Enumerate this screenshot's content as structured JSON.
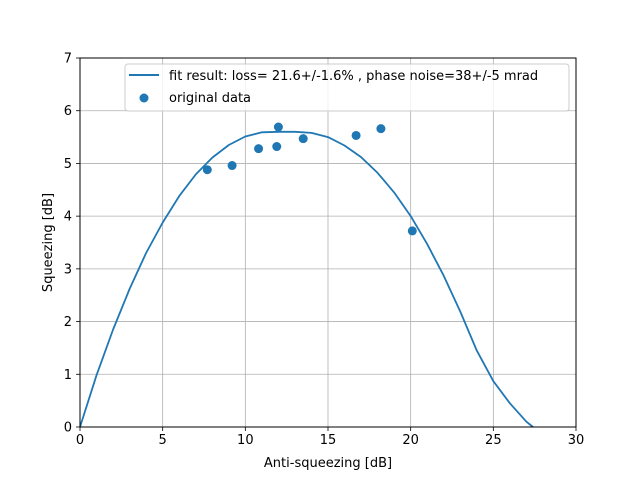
{
  "chart_data": {
    "type": "scatter",
    "title": "",
    "xlabel": "Anti-squeezing [dB]",
    "ylabel": "Squeezing [dB]",
    "xlim": [
      0,
      30
    ],
    "ylim": [
      0,
      7
    ],
    "x_ticks": [
      0,
      5,
      10,
      15,
      20,
      25,
      30
    ],
    "y_ticks": [
      0,
      1,
      2,
      3,
      4,
      5,
      6,
      7
    ],
    "grid": true,
    "legend_position": "top-right",
    "series": [
      {
        "name": "fit result: loss= 21.6+/-1.6% , phase noise=38+/-5 mrad",
        "kind": "line",
        "color": "#1f77b4",
        "points": [
          [
            0,
            0
          ],
          [
            1,
            0.98
          ],
          [
            2,
            1.85
          ],
          [
            3,
            2.62
          ],
          [
            4,
            3.3
          ],
          [
            5,
            3.88
          ],
          [
            6,
            4.38
          ],
          [
            7,
            4.79
          ],
          [
            8,
            5.11
          ],
          [
            9,
            5.35
          ],
          [
            10,
            5.51
          ],
          [
            11,
            5.59
          ],
          [
            12,
            5.6
          ],
          [
            13,
            5.6
          ],
          [
            14,
            5.58
          ],
          [
            15,
            5.5
          ],
          [
            16,
            5.34
          ],
          [
            17,
            5.12
          ],
          [
            18,
            4.82
          ],
          [
            19,
            4.45
          ],
          [
            20,
            4.0
          ],
          [
            21,
            3.47
          ],
          [
            22,
            2.87
          ],
          [
            23,
            2.19
          ],
          [
            24,
            1.45
          ],
          [
            25,
            0.87
          ],
          [
            26,
            0.45
          ],
          [
            27,
            0.1
          ],
          [
            27.4,
            0
          ]
        ]
      },
      {
        "name": "original data",
        "kind": "scatter",
        "color": "#1f77b4",
        "points": [
          [
            7.7,
            4.88
          ],
          [
            9.2,
            4.96
          ],
          [
            10.8,
            5.28
          ],
          [
            11.9,
            5.32
          ],
          [
            12.0,
            5.69
          ],
          [
            13.5,
            5.47
          ],
          [
            16.7,
            5.53
          ],
          [
            18.2,
            5.66
          ],
          [
            20.1,
            3.72
          ]
        ]
      }
    ]
  }
}
